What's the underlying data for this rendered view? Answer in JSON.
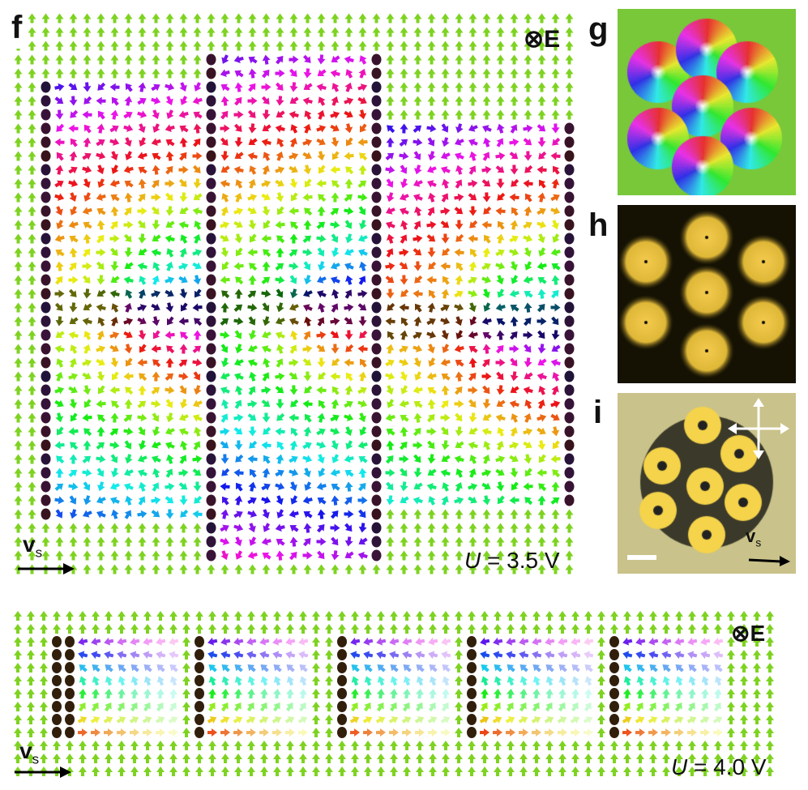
{
  "panels": {
    "f": {
      "label": "f",
      "field_symbol": "⊗",
      "field_letter": "E",
      "velocity_main": "v",
      "velocity_sub": "s",
      "voltage_symbol": "U",
      "voltage_value": "= 3.5 V"
    },
    "g": {
      "label": "g"
    },
    "h": {
      "label": "h"
    },
    "i": {
      "label": "i",
      "velocity_main": "v",
      "velocity_sub": "s"
    },
    "bottom": {
      "field_symbol": "⊗",
      "field_letter": "E",
      "velocity_main": "v",
      "velocity_sub": "s",
      "voltage_symbol": "U",
      "voltage_value": "= 4.0 V"
    }
  },
  "colors": {
    "background_field": "#7ed321",
    "panel_h_bright": "#f2c94c",
    "panel_i_background": "#c9c28a",
    "panel_i_bright": "#f5d34a"
  }
}
